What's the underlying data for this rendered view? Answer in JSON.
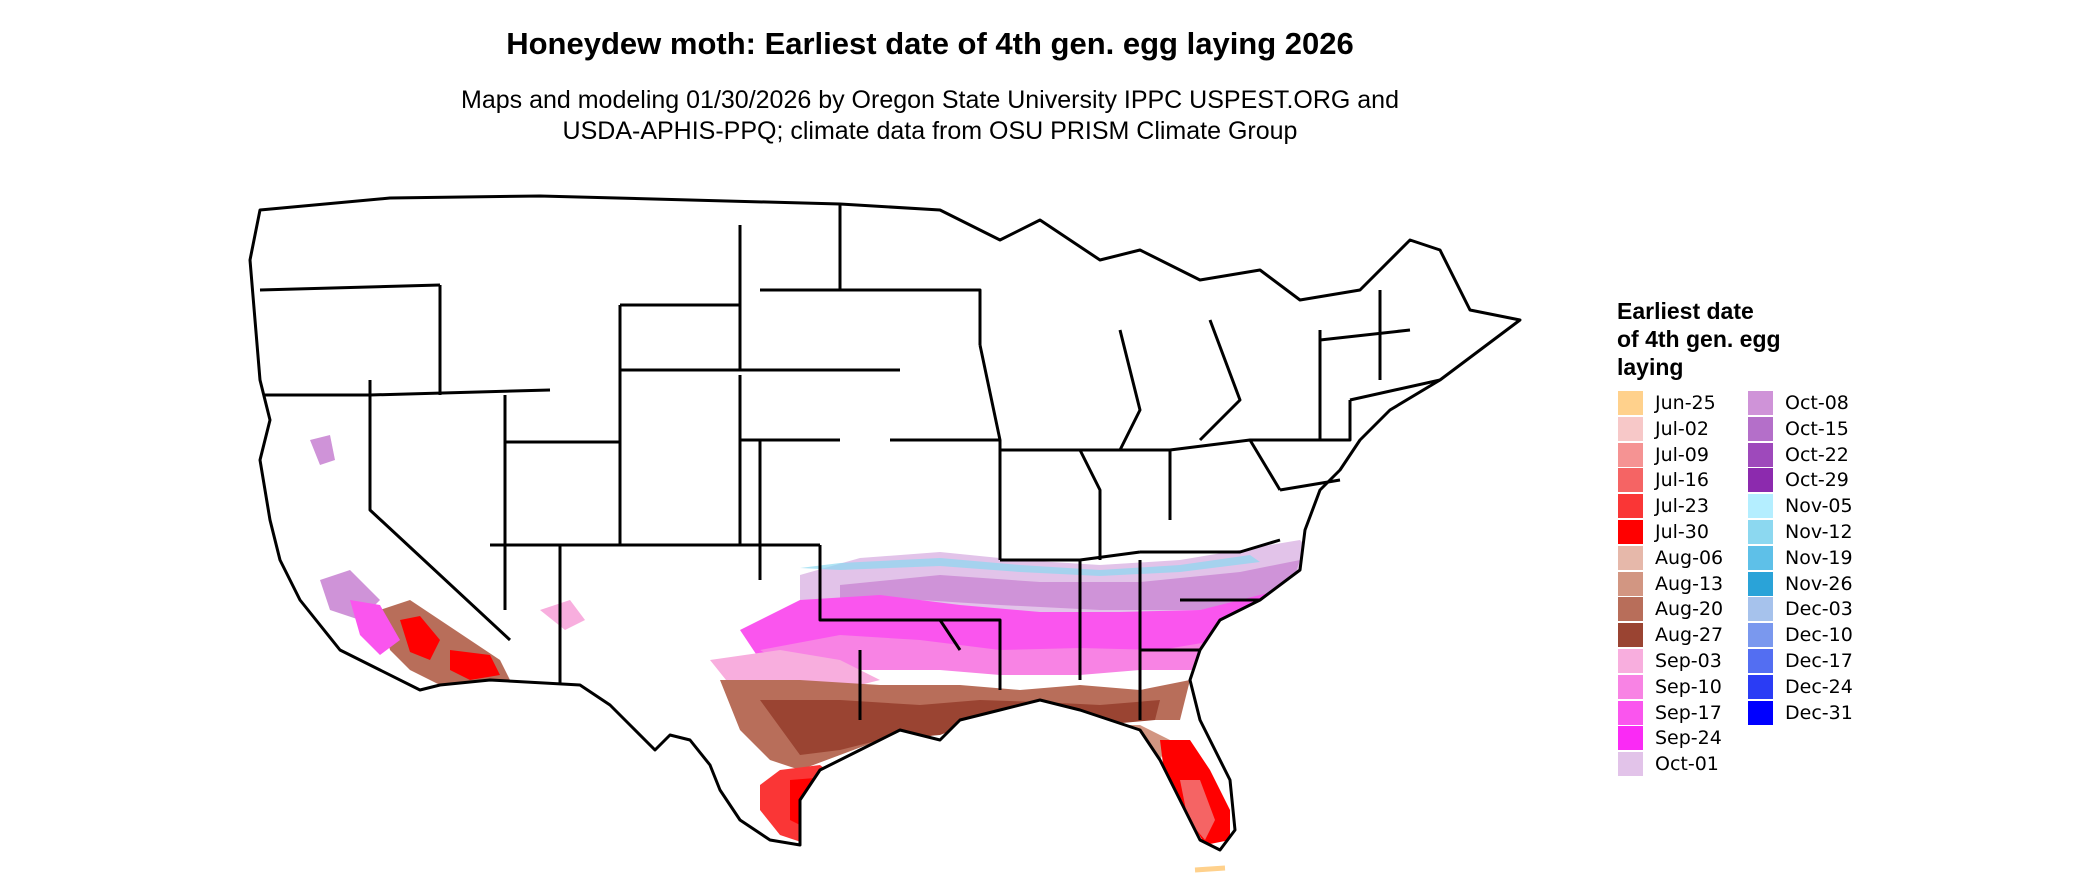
{
  "title": "Honeydew moth: Earliest date of 4th gen. egg laying 2026",
  "subtitle": [
    "Maps and modeling 01/30/2026 by Oregon State University IPPC USPEST.ORG and",
    "USDA-APHIS-PPQ; climate data from OSU PRISM Climate Group"
  ],
  "legend": {
    "title": [
      "Earliest date",
      "of 4th gen. egg",
      "laying"
    ],
    "columns": [
      [
        {
          "label": "Jun-25",
          "color": "#FFD18C"
        },
        {
          "label": "Jul-02",
          "color": "#F7C8C8"
        },
        {
          "label": "Jul-09",
          "color": "#F59393"
        },
        {
          "label": "Jul-16",
          "color": "#F56464"
        },
        {
          "label": "Jul-23",
          "color": "#FA3636"
        },
        {
          "label": "Jul-30",
          "color": "#FF0000"
        },
        {
          "label": "Aug-06",
          "color": "#E6B8AA"
        },
        {
          "label": "Aug-13",
          "color": "#D29682"
        },
        {
          "label": "Aug-20",
          "color": "#B86E5A"
        },
        {
          "label": "Aug-27",
          "color": "#9A4432"
        },
        {
          "label": "Sep-03",
          "color": "#F8AEDE"
        },
        {
          "label": "Sep-10",
          "color": "#F883E4"
        },
        {
          "label": "Sep-17",
          "color": "#FA55EE"
        },
        {
          "label": "Sep-24",
          "color": "#FA2AF5"
        },
        {
          "label": "Oct-01",
          "color": "#E2C3E9"
        }
      ],
      [
        {
          "label": "Oct-08",
          "color": "#CF93D8"
        },
        {
          "label": "Oct-15",
          "color": "#B46FC9"
        },
        {
          "label": "Oct-22",
          "color": "#9E49BB"
        },
        {
          "label": "Oct-29",
          "color": "#8C2AAE"
        },
        {
          "label": "Nov-05",
          "color": "#B4EEFF"
        },
        {
          "label": "Nov-12",
          "color": "#8CD8F0"
        },
        {
          "label": "Nov-19",
          "color": "#5EC0E8"
        },
        {
          "label": "Nov-26",
          "color": "#2AA3D8"
        },
        {
          "label": "Dec-03",
          "color": "#A6C2EC"
        },
        {
          "label": "Dec-10",
          "color": "#7A98EE"
        },
        {
          "label": "Dec-17",
          "color": "#536EF2"
        },
        {
          "label": "Dec-24",
          "color": "#2A3CF5"
        },
        {
          "label": "Dec-31",
          "color": "#0000FF"
        }
      ]
    ]
  }
}
